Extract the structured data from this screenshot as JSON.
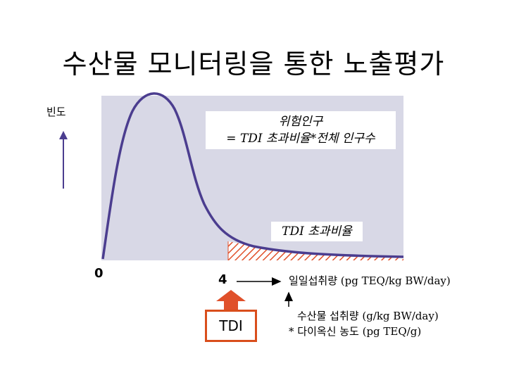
{
  "title": "수산물 모니터링을 통한 노출평가",
  "y_axis_label": "빈도",
  "risk_formula": {
    "line1": "위험인구",
    "line2": "= TDI 초과비율*전체 인구수"
  },
  "exceed_label": "TDI 초과비율",
  "x_origin_label": "0",
  "tdi_value_label": "4",
  "tdi_box_label": "TDI",
  "x_axis_label": "일일섭취량 (pg TEQ/kg BW/day)",
  "fish_intake": {
    "line1": "수산물 섭취량 (g/kg BW/day)",
    "line2": "* 다이옥신 농도 (pg TEQ/g)"
  },
  "colors": {
    "plot_background": "#d8d8e6",
    "curve": "#4b3d8f",
    "hatch": "#e0502a",
    "tdi_arrow": "#e0502a"
  }
}
